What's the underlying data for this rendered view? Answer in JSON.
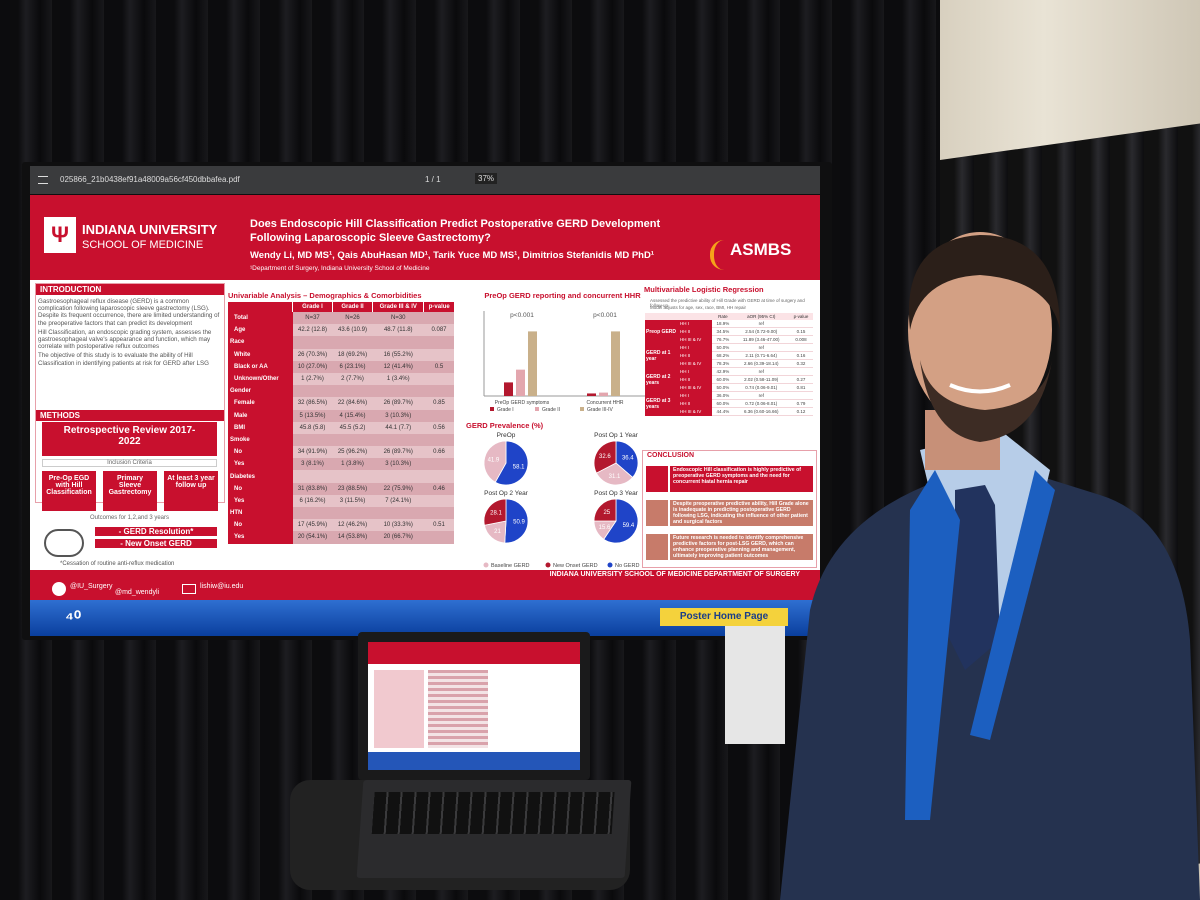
{
  "pdf_viewer": {
    "filename": "025866_21b0438ef91a48009a56cf450dbbafea.pdf",
    "page": "1 / 1",
    "zoom": "37%"
  },
  "poster": {
    "institution_name": "INDIANA UNIVERSITY",
    "institution_school": "SCHOOL OF MEDICINE",
    "title": "Does Endoscopic Hill Classification Predict Postoperative GERD Development Following Laparoscopic Sleeve Gastrectomy?",
    "authors": "Wendy Li, MD MS¹, Qais AbuHasan MD¹, Tarik Yuce MD MS¹, Dimitrios Stefanidis MD PhD¹",
    "affiliation": "¹Department of Surgery, Indiana University School of Medicine",
    "society": "ASMBS",
    "introduction": {
      "heading": "INTRODUCTION",
      "bullets": [
        "Gastroesophageal reflux disease (GERD) is a common complication following laparoscopic sleeve gastrectomy (LSG). Despite its frequent occurrence, there are limited understanding of the preoperative factors that can predict its development",
        "Hill Classification, an endoscopic grading system, assesses the gastroesophageal valve's appearance and function, which may correlate with postoperative reflux outcomes",
        "The objective of this study is to evaluate the ability of Hill Classification in identifying patients at risk for GERD after LSG"
      ]
    },
    "methods": {
      "heading": "METHODS",
      "review": "Retrospective Review 2017-2022",
      "inclusion": "Inclusion Criteria",
      "criteria": [
        "Pre-Op EGD with Hill Classification",
        "Primary Sleeve Gastrectomy",
        "At least 3 year follow up"
      ],
      "outcomes_heading": "Outcomes for 1,2,and 3 years",
      "outcomes": [
        "- GERD Resolution*",
        "- New Onset GERD"
      ],
      "footnote": "*Cessation of routine anti-reflux medication"
    },
    "univariable": {
      "heading": "Univariable Analysis – Demographics & Comorbidities",
      "columns": [
        "Grade I",
        "Grade II",
        "Grade III & IV",
        "p-value"
      ],
      "rows": [
        {
          "label": "Total",
          "cells": [
            "N=37",
            "N=26",
            "N=30",
            null
          ]
        },
        {
          "label": "Age",
          "cells": [
            "42.2 (12.8)",
            "43.6 (10.9)",
            "48.7 (11.8)",
            "0.087"
          ]
        },
        {
          "label": "Race",
          "cells": [
            null,
            null,
            null,
            null
          ]
        },
        {
          "label": "White",
          "cells": [
            "26 (70.3%)",
            "18 (69.2%)",
            "16 (55.2%)",
            null
          ]
        },
        {
          "label": "Black or AA",
          "cells": [
            "10 (27.0%)",
            "6 (23.1%)",
            "12 (41.4%)",
            "0.5"
          ]
        },
        {
          "label": "Unknown/Other",
          "cells": [
            "1 (2.7%)",
            "2 (7.7%)",
            "1 (3.4%)",
            null
          ]
        },
        {
          "label": "Gender",
          "cells": [
            null,
            null,
            null,
            null
          ]
        },
        {
          "label": "Female",
          "cells": [
            "32 (86.5%)",
            "22 (84.6%)",
            "26 (89.7%)",
            "0.85"
          ]
        },
        {
          "label": "Male",
          "cells": [
            "5 (13.5%)",
            "4 (15.4%)",
            "3 (10.3%)",
            null
          ]
        },
        {
          "label": "BMI",
          "cells": [
            "45.8 (5.8)",
            "45.5 (5.2)",
            "44.1 (7.7)",
            "0.56"
          ]
        },
        {
          "label": "Smoke",
          "cells": [
            null,
            null,
            null,
            null
          ]
        },
        {
          "label": "No",
          "cells": [
            "34 (91.9%)",
            "25 (96.2%)",
            "26 (89.7%)",
            "0.66"
          ]
        },
        {
          "label": "Yes",
          "cells": [
            "3 (8.1%)",
            "1 (3.8%)",
            "3 (10.3%)",
            null
          ]
        },
        {
          "label": "Diabetes",
          "cells": [
            null,
            null,
            null,
            null
          ]
        },
        {
          "label": "No",
          "cells": [
            "31 (83.8%)",
            "23 (88.5%)",
            "22 (75.9%)",
            "0.46"
          ]
        },
        {
          "label": "Yes",
          "cells": [
            "6 (16.2%)",
            "3 (11.5%)",
            "7 (24.1%)",
            null
          ]
        },
        {
          "label": "HTN",
          "cells": [
            null,
            null,
            null,
            null
          ]
        },
        {
          "label": "No",
          "cells": [
            "17 (45.9%)",
            "12 (46.2%)",
            "10 (33.3%)",
            "0.51"
          ]
        },
        {
          "label": "Yes",
          "cells": [
            "20 (54.1%)",
            "14 (53.8%)",
            "20 (66.7%)",
            null
          ]
        }
      ]
    },
    "bar_chart": {
      "type": "bar",
      "title": "PreOp GERD reporting and concurrent HHR",
      "categories": [
        "PreOp GERD symptoms",
        "Concurrent HHR"
      ],
      "series": [
        {
          "name": "Grade I",
          "color": "#b3182e",
          "values": [
            16,
            3
          ]
        },
        {
          "name": "Grade II",
          "color": "#e3a6ae",
          "values": [
            31,
            4
          ]
        },
        {
          "name": "Grade III-IV",
          "color": "#c9b08a",
          "values": [
            76,
            76
          ]
        }
      ],
      "annotations": [
        "p<0.001",
        "p<0.001"
      ],
      "ylim": [
        0,
        100
      ]
    },
    "pies": {
      "type": "pie",
      "heading": "GERD Prevalence (%)",
      "legend": [
        {
          "name": "Baseline GERD",
          "color": "#e6b9c4"
        },
        {
          "name": "New Onset GERD",
          "color": "#b3182e"
        },
        {
          "name": "No GERD",
          "color": "#1f44c8"
        }
      ],
      "charts": [
        {
          "title": "PreOp",
          "values": [
            41.9,
            null,
            58.1
          ]
        },
        {
          "title": "Post Op 1 Year",
          "values": [
            31.1,
            32.6,
            36.4
          ]
        },
        {
          "title": "Post Op 2 Year",
          "values": [
            21,
            28.1,
            50.9
          ]
        },
        {
          "title": "Post Op 3 Year",
          "values": [
            15.6,
            25,
            59.4
          ]
        }
      ]
    },
    "regression": {
      "heading": "Multivariable Logistic Regression",
      "notes": [
        "Assessed the predictive ability of Hill Grade with GERD at time of surgery and follow-up",
        "Model adjusts for age, sex, race, BMI, HH repair"
      ],
      "columns": [
        "Rate",
        "aOR (95% CI)",
        "p-value"
      ],
      "groups": [
        {
          "label": "Preop GERD",
          "rows": [
            [
              "HH I",
              "18.9%",
              "ref",
              null
            ],
            [
              "HH II",
              "34.5%",
              "2.54 (0.72-9.00)",
              "0.15"
            ],
            [
              "HH III & IV",
              "76.7%",
              "11.89 (3.46-47.00)",
              "0.008"
            ]
          ]
        },
        {
          "label": "GERD at 1 year",
          "rows": [
            [
              "HH I",
              "50.0%",
              "ref",
              null
            ],
            [
              "HH II",
              "68.2%",
              "2.11 (0.71-6.64)",
              "0.16"
            ],
            [
              "HH III & IV",
              "78.3%",
              "2.66 (0.39-18.14)",
              "0.32"
            ]
          ]
        },
        {
          "label": "GERD at 2 years",
          "rows": [
            [
              "HH I",
              "42.9%",
              "ref",
              null
            ],
            [
              "HH II",
              "60.0%",
              "2.02 (0.58-11.09)",
              "0.27"
            ],
            [
              "HH III & IV",
              "50.0%",
              "0.74 (0.06-9.01)",
              "0.81"
            ]
          ]
        },
        {
          "label": "GERD at 3 years",
          "rows": [
            [
              "HH I",
              "36.0%",
              "ref",
              null
            ],
            [
              "HH II",
              "60.0%",
              "0.72 (0.06-8.01)",
              "0.79"
            ],
            [
              "HH III & IV",
              "44.4%",
              "6.36 (0.60-16.66)",
              "0.12"
            ]
          ]
        }
      ]
    },
    "conclusion": {
      "heading": "CONCLUSION",
      "items": [
        "Endoscopic Hill classification is highly predictive of preoperative GERD symptoms and the need for concurrent hiatal hernia repair",
        "Despite preoperative predictive ability, Hill Grade alone is inadequate in predicting postoperative GERD following LSG, indicating the influence of other patient and surgical factors",
        "Future research is needed to identify comprehensive predictive factors for post-LSG GERD, which can enhance preoperative planning and management, ultimately improving patient outcomes"
      ]
    },
    "footer": "INDIANA UNIVERSITY SCHOOL OF MEDICINE DEPARTMENT OF SURGERY",
    "contacts": [
      "@IU_Surgery",
      "@md_wendyli",
      "lishiw@iu.edu"
    ]
  },
  "sign": "Poster Home Page"
}
